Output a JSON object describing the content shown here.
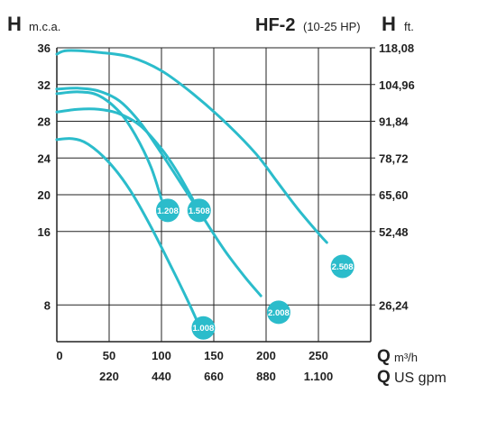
{
  "chart_data": {
    "type": "line",
    "title": "HF-2",
    "subtitle": "(10-25 HP)",
    "left_axis": {
      "symbol": "H",
      "unit": "m.c.a."
    },
    "right_axis": {
      "symbol": "H",
      "unit": "ft."
    },
    "x_axis_primary": {
      "symbol": "Q",
      "unit": "m³/h"
    },
    "x_axis_secondary": {
      "symbol": "Q",
      "unit": "US gpm"
    },
    "xlim": [
      0,
      300
    ],
    "ylim": [
      4,
      36
    ],
    "grid": true,
    "x_ticks": [
      0,
      50,
      100,
      150,
      200,
      250
    ],
    "x_tick_labels": [
      "0",
      "50",
      "100",
      "150",
      "200",
      "250"
    ],
    "x2_ticks": [
      50,
      100,
      150,
      200,
      250
    ],
    "x2_tick_labels": [
      "220",
      "440",
      "660",
      "880",
      "1.100"
    ],
    "y_ticks": [
      8,
      16,
      20,
      24,
      28,
      32,
      36
    ],
    "y_tick_labels": [
      "8",
      "16",
      "20",
      "24",
      "28",
      "32",
      "36"
    ],
    "y2_ticks": [
      8,
      16,
      20,
      24,
      28,
      32,
      36
    ],
    "y2_tick_labels": [
      "26,24",
      "52,48",
      "65,60",
      "78,72",
      "91,84",
      "104,96",
      "118,08"
    ],
    "line_color": "#2bbccb",
    "series": [
      {
        "name": "1.008",
        "label_at": [
          140,
          5.5
        ],
        "points": [
          [
            0,
            26
          ],
          [
            15,
            26.1
          ],
          [
            30,
            25.5
          ],
          [
            50,
            23.5
          ],
          [
            70,
            20.5
          ],
          [
            90,
            16.5
          ],
          [
            110,
            12
          ],
          [
            125,
            8.5
          ],
          [
            135,
            6
          ]
        ]
      },
      {
        "name": "1.208",
        "label_at": [
          106,
          18.3
        ],
        "points": [
          [
            0,
            31
          ],
          [
            20,
            31.2
          ],
          [
            40,
            30.8
          ],
          [
            60,
            29
          ],
          [
            75,
            26.5
          ],
          [
            90,
            23
          ],
          [
            100,
            19.5
          ]
        ]
      },
      {
        "name": "1.508",
        "label_at": [
          136,
          18.3
        ],
        "points": [
          [
            0,
            29
          ],
          [
            20,
            29.3
          ],
          [
            40,
            29.3
          ],
          [
            60,
            28.8
          ],
          [
            80,
            27.5
          ],
          [
            100,
            25
          ],
          [
            115,
            22.5
          ],
          [
            130,
            19.5
          ]
        ]
      },
      {
        "name": "2.008",
        "label_at": [
          212,
          7.2
        ],
        "points": [
          [
            0,
            31.5
          ],
          [
            20,
            31.6
          ],
          [
            40,
            31.3
          ],
          [
            60,
            30.2
          ],
          [
            80,
            27.8
          ],
          [
            100,
            24.5
          ],
          [
            120,
            21
          ],
          [
            140,
            17.5
          ],
          [
            160,
            14
          ],
          [
            180,
            11
          ],
          [
            195,
            9
          ]
        ]
      },
      {
        "name": "2.508",
        "label_at": [
          273,
          12.2
        ],
        "points": [
          [
            0,
            35.3
          ],
          [
            10,
            35.7
          ],
          [
            40,
            35.5
          ],
          [
            70,
            35
          ],
          [
            100,
            33.5
          ],
          [
            130,
            31
          ],
          [
            160,
            28
          ],
          [
            190,
            24.5
          ],
          [
            210,
            21.5
          ],
          [
            230,
            18.5
          ],
          [
            250,
            15.8
          ],
          [
            258,
            14.8
          ]
        ]
      }
    ]
  }
}
